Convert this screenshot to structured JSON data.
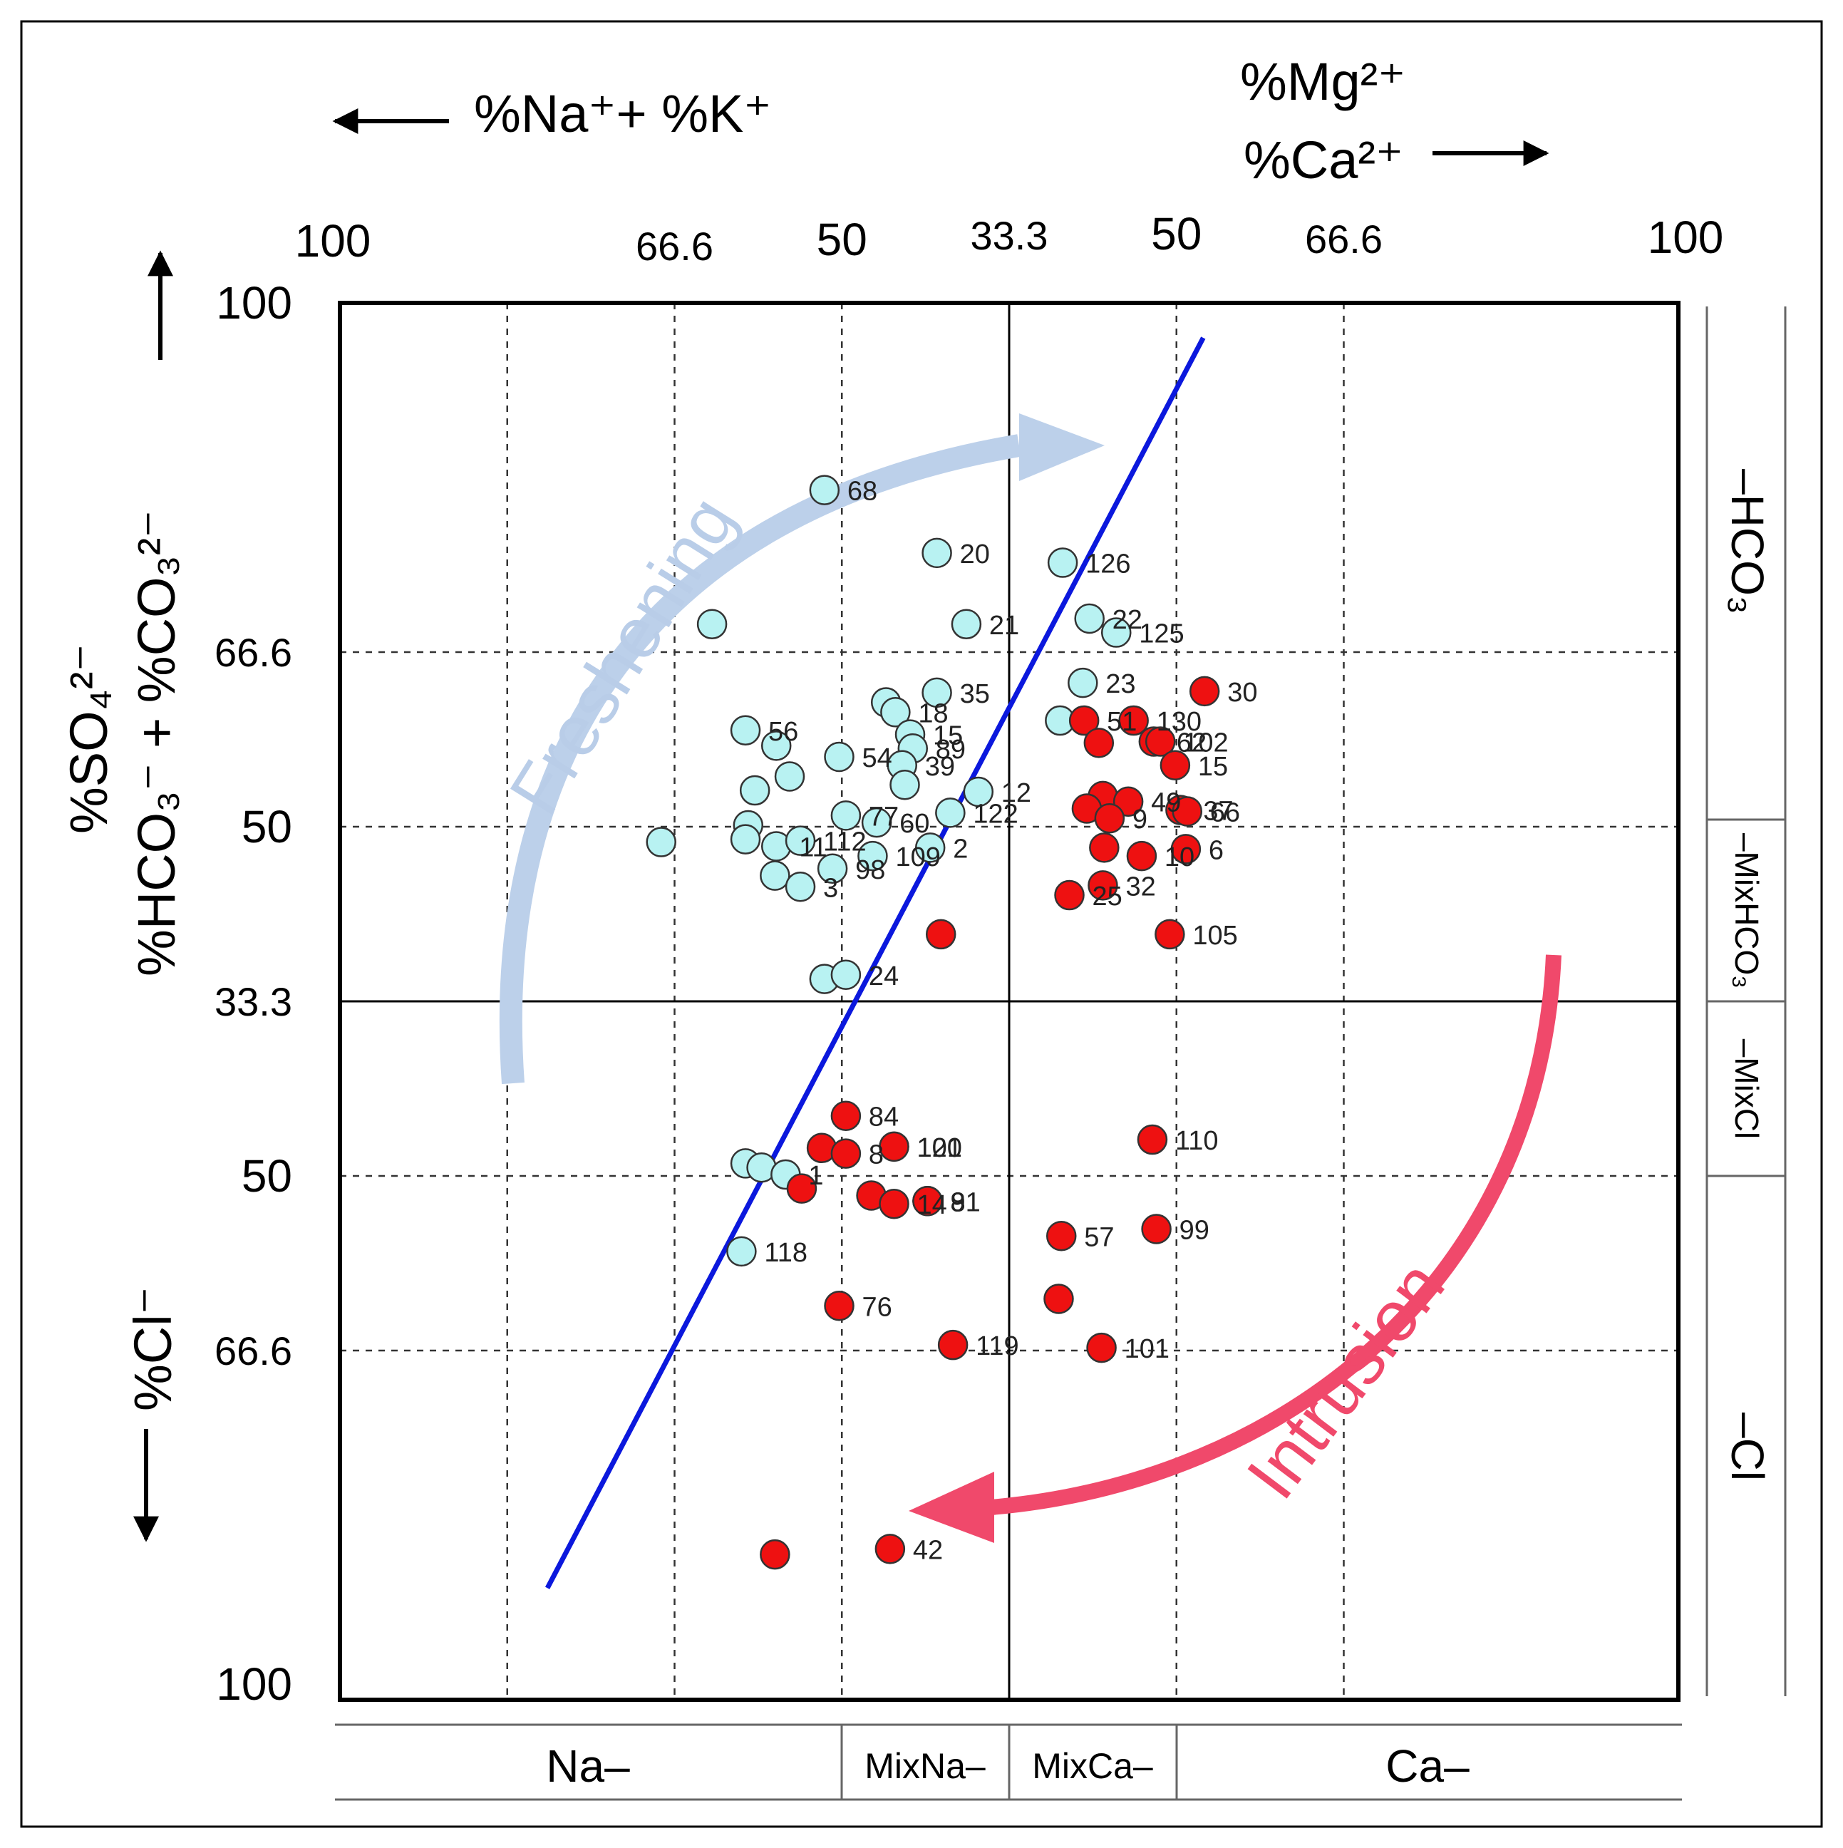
{
  "chart_data": {
    "type": "scatter",
    "title": "",
    "header": {
      "left": "%Na⁺+ %K⁺",
      "right_top": "%Mg²⁺",
      "right_bottom": "%Ca²⁺"
    },
    "y_labels": {
      "upper_line1": "%SO₄²⁻",
      "upper_line2": "%HCO₃⁻ + %CO₃²⁻",
      "lower": "%Cl⁻"
    },
    "top_ticks": [
      "100",
      "66.6",
      "50",
      "33.3",
      "50",
      "66.6",
      "100"
    ],
    "left_ticks": [
      "100",
      "66.6",
      "50",
      "33.3",
      "50",
      "66.6",
      "100"
    ],
    "x_positions_norm": [
      0.125,
      0.25,
      0.375,
      0.5,
      0.625,
      0.75
    ],
    "y_positions_norm": [
      0.25,
      0.375,
      0.5,
      0.625,
      0.75
    ],
    "bottom_categories": [
      "Na–",
      "MixNa–",
      "MixCa–",
      "Ca–"
    ],
    "right_categories": [
      "–HCO₃",
      "–MixHCO₃",
      "–MixCl",
      "–Cl"
    ],
    "annotations": {
      "freshening": "Freshening",
      "intrusion": "Intrusion"
    },
    "colors": {
      "freshening_points": "#b8f2f2",
      "intrusion_points": "#ee1111",
      "trend_line": "#0b18dd",
      "freshening_arrow": "#bcd0ea",
      "intrusion_arrow": "#f0496b"
    },
    "trend_line": {
      "x": [
        0.155,
        0.645
      ],
      "y": [
        0.92,
        0.025
      ]
    },
    "series": [
      {
        "name": "freshening",
        "points": [
          {
            "x": 0.362,
            "y": 0.134,
            "label": "68"
          },
          {
            "x": 0.446,
            "y": 0.179,
            "label": "20"
          },
          {
            "x": 0.54,
            "y": 0.186,
            "label": "126"
          },
          {
            "x": 0.278,
            "y": 0.23,
            "label": ""
          },
          {
            "x": 0.468,
            "y": 0.23,
            "label": "21"
          },
          {
            "x": 0.56,
            "y": 0.226,
            "label": "22"
          },
          {
            "x": 0.58,
            "y": 0.236,
            "label": "125"
          },
          {
            "x": 0.555,
            "y": 0.272,
            "label": "23"
          },
          {
            "x": 0.446,
            "y": 0.279,
            "label": "35"
          },
          {
            "x": 0.408,
            "y": 0.286,
            "label": ""
          },
          {
            "x": 0.415,
            "y": 0.293,
            "label": "18"
          },
          {
            "x": 0.538,
            "y": 0.299,
            "label": ""
          },
          {
            "x": 0.303,
            "y": 0.306,
            "label": "56"
          },
          {
            "x": 0.326,
            "y": 0.317,
            "label": ""
          },
          {
            "x": 0.373,
            "y": 0.325,
            "label": "54"
          },
          {
            "x": 0.426,
            "y": 0.309,
            "label": "15"
          },
          {
            "x": 0.428,
            "y": 0.319,
            "label": "89"
          },
          {
            "x": 0.42,
            "y": 0.331,
            "label": "39"
          },
          {
            "x": 0.336,
            "y": 0.339,
            "label": ""
          },
          {
            "x": 0.31,
            "y": 0.349,
            "label": ""
          },
          {
            "x": 0.422,
            "y": 0.345,
            "label": ""
          },
          {
            "x": 0.477,
            "y": 0.35,
            "label": "12"
          },
          {
            "x": 0.305,
            "y": 0.374,
            "label": ""
          },
          {
            "x": 0.303,
            "y": 0.384,
            "label": ""
          },
          {
            "x": 0.326,
            "y": 0.389,
            "label": "11"
          },
          {
            "x": 0.344,
            "y": 0.385,
            "label": "112"
          },
          {
            "x": 0.378,
            "y": 0.367,
            "label": "77"
          },
          {
            "x": 0.401,
            "y": 0.372,
            "label": "60"
          },
          {
            "x": 0.456,
            "y": 0.365,
            "label": "122"
          },
          {
            "x": 0.441,
            "y": 0.39,
            "label": "2"
          },
          {
            "x": 0.24,
            "y": 0.386,
            "label": ""
          },
          {
            "x": 0.325,
            "y": 0.41,
            "label": ""
          },
          {
            "x": 0.344,
            "y": 0.418,
            "label": "3"
          },
          {
            "x": 0.368,
            "y": 0.405,
            "label": "98"
          },
          {
            "x": 0.398,
            "y": 0.396,
            "label": "109"
          },
          {
            "x": 0.362,
            "y": 0.484,
            "label": ""
          },
          {
            "x": 0.378,
            "y": 0.481,
            "label": "24"
          },
          {
            "x": 0.303,
            "y": 0.616,
            "label": ""
          },
          {
            "x": 0.315,
            "y": 0.619,
            "label": ""
          },
          {
            "x": 0.333,
            "y": 0.624,
            "label": "1"
          },
          {
            "x": 0.3,
            "y": 0.679,
            "label": "118"
          }
        ]
      },
      {
        "name": "intrusion",
        "points": [
          {
            "x": 0.646,
            "y": 0.278,
            "label": "30"
          },
          {
            "x": 0.556,
            "y": 0.299,
            "label": "51"
          },
          {
            "x": 0.593,
            "y": 0.299,
            "label": "130"
          },
          {
            "x": 0.567,
            "y": 0.315,
            "label": ""
          },
          {
            "x": 0.608,
            "y": 0.314,
            "label": "62"
          },
          {
            "x": 0.613,
            "y": 0.314,
            "label": "102"
          },
          {
            "x": 0.624,
            "y": 0.331,
            "label": "15"
          },
          {
            "x": 0.57,
            "y": 0.353,
            "label": ""
          },
          {
            "x": 0.589,
            "y": 0.357,
            "label": "49"
          },
          {
            "x": 0.558,
            "y": 0.362,
            "label": ""
          },
          {
            "x": 0.575,
            "y": 0.369,
            "label": "9"
          },
          {
            "x": 0.628,
            "y": 0.363,
            "label": "37"
          },
          {
            "x": 0.633,
            "y": 0.364,
            "label": "66"
          },
          {
            "x": 0.571,
            "y": 0.39,
            "label": ""
          },
          {
            "x": 0.599,
            "y": 0.396,
            "label": "10"
          },
          {
            "x": 0.632,
            "y": 0.391,
            "label": "6"
          },
          {
            "x": 0.57,
            "y": 0.417,
            "label": "32"
          },
          {
            "x": 0.545,
            "y": 0.424,
            "label": "25"
          },
          {
            "x": 0.62,
            "y": 0.452,
            "label": "105"
          },
          {
            "x": 0.449,
            "y": 0.452,
            "label": ""
          },
          {
            "x": 0.378,
            "y": 0.582,
            "label": "84"
          },
          {
            "x": 0.36,
            "y": 0.605,
            "label": ""
          },
          {
            "x": 0.378,
            "y": 0.609,
            "label": "8"
          },
          {
            "x": 0.414,
            "y": 0.604,
            "label": "100"
          },
          {
            "x": 0.414,
            "y": 0.604,
            "label": "121"
          },
          {
            "x": 0.607,
            "y": 0.599,
            "label": "110"
          },
          {
            "x": 0.345,
            "y": 0.634,
            "label": ""
          },
          {
            "x": 0.397,
            "y": 0.639,
            "label": ""
          },
          {
            "x": 0.414,
            "y": 0.645,
            "label": "14"
          },
          {
            "x": 0.439,
            "y": 0.643,
            "label": "8"
          },
          {
            "x": 0.439,
            "y": 0.643,
            "label": "9"
          },
          {
            "x": 0.439,
            "y": 0.643,
            "label": "31"
          },
          {
            "x": 0.539,
            "y": 0.668,
            "label": "57"
          },
          {
            "x": 0.61,
            "y": 0.663,
            "label": "99"
          },
          {
            "x": 0.373,
            "y": 0.718,
            "label": "76"
          },
          {
            "x": 0.537,
            "y": 0.713,
            "label": ""
          },
          {
            "x": 0.458,
            "y": 0.746,
            "label": "119"
          },
          {
            "x": 0.569,
            "y": 0.748,
            "label": "101"
          },
          {
            "x": 0.325,
            "y": 0.896,
            "label": ""
          },
          {
            "x": 0.411,
            "y": 0.892,
            "label": "42"
          }
        ]
      }
    ]
  }
}
